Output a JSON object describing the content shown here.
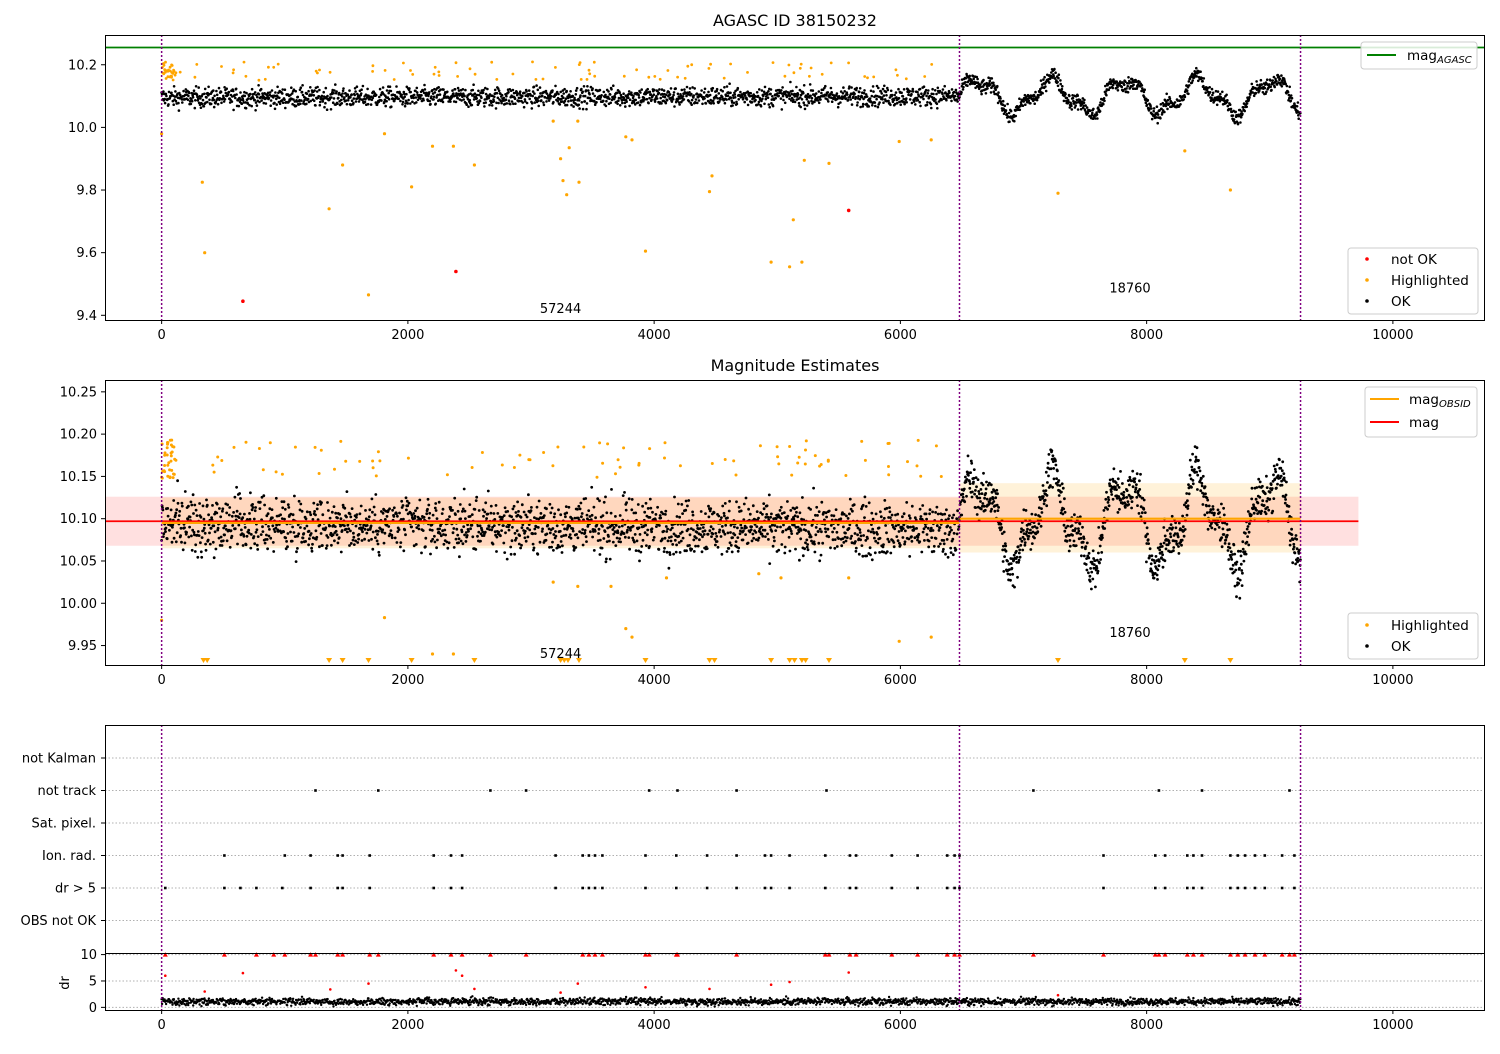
{
  "chart_data": [
    {
      "type": "scatter",
      "title": "AGASC ID 38150232",
      "xlim": [
        -460,
        10740
      ],
      "ylim": [
        9.385,
        10.295
      ],
      "xticks": [
        0,
        2000,
        4000,
        6000,
        8000,
        10000
      ],
      "xtick_labels": [
        "0",
        "2000",
        "4000",
        "6000",
        "8000",
        "10000"
      ],
      "yticks": [
        9.4,
        9.6,
        9.8,
        10.0,
        10.2
      ],
      "ytick_labels": [
        "9.4",
        "9.6",
        "9.8",
        "10.0",
        "10.2"
      ],
      "obsid_boundaries": [
        0,
        6480,
        9250
      ],
      "obsid_labels": [
        {
          "text": "57244",
          "x": 3240,
          "y": 9.42
        },
        {
          "text": "18760",
          "x": 7865,
          "y": 9.485
        }
      ],
      "reference_line": {
        "name": "mag",
        "subscript": "AGASC",
        "y": 10.255,
        "color": "#008000"
      },
      "legends": [
        {
          "position": "top-right",
          "entries": [
            {
              "label": "mag",
              "subscript": "AGASC",
              "kind": "line",
              "color": "#008000"
            }
          ]
        },
        {
          "position": "lower-right",
          "entries": [
            {
              "label": "not OK",
              "kind": "point",
              "color": "#ff0000"
            },
            {
              "label": "Highlighted",
              "kind": "point",
              "color": "#ffa500"
            },
            {
              "label": "OK",
              "kind": "point",
              "color": "#000000"
            }
          ]
        }
      ],
      "series": [
        {
          "name": "OK",
          "color": "#000000",
          "segments": [
            {
              "x_start": 0,
              "x_end": 6480,
              "mean": 10.095,
              "spread": 0.035,
              "trend": -0.005
            },
            {
              "x_start": 6480,
              "x_end": 9250,
              "mean": 10.1,
              "spread": 0.05,
              "oscillation": 0.05
            }
          ]
        },
        {
          "name": "Highlighted",
          "color": "#ffa500",
          "points": [
            [
              0,
              9.98
            ],
            [
              330,
              9.825
            ],
            [
              350,
              9.6
            ],
            [
              1360,
              9.74
            ],
            [
              1470,
              9.88
            ],
            [
              1680,
              9.465
            ],
            [
              1810,
              9.98
            ],
            [
              2030,
              9.81
            ],
            [
              2200,
              9.94
            ],
            [
              2370,
              9.94
            ],
            [
              2540,
              9.88
            ],
            [
              3180,
              10.02
            ],
            [
              3240,
              9.9
            ],
            [
              3260,
              9.83
            ],
            [
              3290,
              9.785
            ],
            [
              3310,
              9.935
            ],
            [
              3390,
              9.825
            ],
            [
              3380,
              10.02
            ],
            [
              3770,
              9.97
            ],
            [
              3820,
              9.96
            ],
            [
              3930,
              9.605
            ],
            [
              4450,
              9.795
            ],
            [
              4470,
              9.845
            ],
            [
              4950,
              9.57
            ],
            [
              5100,
              9.555
            ],
            [
              5130,
              9.705
            ],
            [
              5200,
              9.57
            ],
            [
              5220,
              9.895
            ],
            [
              5420,
              9.885
            ],
            [
              5990,
              9.955
            ],
            [
              6250,
              9.96
            ],
            [
              7280,
              9.79
            ],
            [
              8310,
              9.925
            ],
            [
              8680,
              9.8
            ]
          ]
        },
        {
          "name": "not OK",
          "color": "#ff0000",
          "points": [
            [
              660,
              9.445
            ],
            [
              2390,
              9.54
            ],
            [
              5580,
              9.735
            ]
          ]
        }
      ]
    },
    {
      "type": "scatter",
      "title": "Magnitude Estimates",
      "xlim": [
        -460,
        10740
      ],
      "ylim": [
        9.927,
        10.264
      ],
      "xticks": [
        0,
        2000,
        4000,
        6000,
        8000,
        10000
      ],
      "xtick_labels": [
        "0",
        "2000",
        "4000",
        "6000",
        "8000",
        "10000"
      ],
      "yticks": [
        9.95,
        10.0,
        10.05,
        10.1,
        10.15,
        10.2,
        10.25
      ],
      "ytick_labels": [
        "9.95",
        "10.00",
        "10.05",
        "10.10",
        "10.15",
        "10.20",
        "10.25"
      ],
      "obsid_boundaries": [
        0,
        6480,
        9250
      ],
      "obsid_labels": [
        {
          "text": "57244",
          "x": 3240,
          "y": 9.94
        },
        {
          "text": "18760",
          "x": 7865,
          "y": 9.965
        }
      ],
      "mag_line": {
        "label": "mag",
        "y": 10.097,
        "band": [
          10.068,
          10.126
        ],
        "x_range": [
          -460,
          9720
        ],
        "color": "#ff0000"
      },
      "mag_obsid": [
        {
          "x_range": [
            0,
            6480
          ],
          "y": 10.095,
          "band": [
            10.065,
            10.125
          ]
        },
        {
          "x_range": [
            6480,
            9250
          ],
          "y": 10.1,
          "band": [
            10.06,
            10.142
          ]
        }
      ],
      "legends": [
        {
          "position": "top-right",
          "entries": [
            {
              "label": "mag",
              "subscript": "OBSID",
              "kind": "line",
              "color": "#ffa500"
            },
            {
              "label": "mag",
              "kind": "line",
              "color": "#ff0000"
            }
          ]
        },
        {
          "position": "lower-right",
          "entries": [
            {
              "label": "Highlighted",
              "kind": "point",
              "color": "#ffa500"
            },
            {
              "label": "OK",
              "kind": "point",
              "color": "#000000"
            }
          ]
        }
      ],
      "offscale_markers_x": [
        340,
        370,
        1360,
        1470,
        1680,
        2030,
        2540,
        3240,
        3270,
        3300,
        3390,
        3930,
        4450,
        4490,
        4950,
        5100,
        5140,
        5200,
        5230,
        5420,
        7280,
        8310,
        8680
      ],
      "highlighted_points": [
        [
          0,
          9.98
        ],
        [
          1810,
          9.983
        ],
        [
          2200,
          9.94
        ],
        [
          2370,
          9.94
        ],
        [
          3180,
          10.025
        ],
        [
          3380,
          10.02
        ],
        [
          3650,
          10.02
        ],
        [
          3770,
          9.97
        ],
        [
          3820,
          9.96
        ],
        [
          4100,
          10.03
        ],
        [
          4850,
          10.035
        ],
        [
          5030,
          10.03
        ],
        [
          5580,
          10.03
        ],
        [
          5990,
          9.955
        ],
        [
          6250,
          9.96
        ]
      ]
    },
    {
      "type": "scatter",
      "title": "",
      "xlim": [
        -460,
        10740
      ],
      "xticks": [
        0,
        2000,
        4000,
        6000,
        8000,
        10000
      ],
      "xtick_labels": [
        "0",
        "2000",
        "4000",
        "6000",
        "8000",
        "10000"
      ],
      "flag_rows": [
        "not Kalman",
        "not track",
        "Sat. pixel.",
        "Ion. rad.",
        "dr > 5",
        "OBS not OK"
      ],
      "obsid_boundaries": [
        0,
        6480,
        9250
      ],
      "flags": {
        "not track": [
          1250,
          1760,
          2670,
          2960,
          3960,
          4190,
          4670,
          5400,
          7080,
          8100,
          8450,
          9160
        ],
        "Ion. rad.": [
          510,
          1000,
          1210,
          1430,
          1470,
          1690,
          2210,
          2350,
          2440,
          3200,
          3420,
          3470,
          3520,
          3580,
          3930,
          4180,
          4430,
          4670,
          4900,
          4950,
          5100,
          5390,
          5590,
          5640,
          5930,
          6140,
          6380,
          6440,
          6480,
          7650,
          8070,
          8150,
          8330,
          8380,
          8450,
          8680,
          8740,
          8800,
          8880,
          8960,
          9100,
          9200
        ],
        "dr > 5": [
          30,
          510,
          640,
          770,
          980,
          1210,
          1430,
          1470,
          1690,
          2210,
          2350,
          2440,
          3200,
          3420,
          3470,
          3520,
          3580,
          3930,
          4180,
          4430,
          4670,
          4900,
          4950,
          5100,
          5390,
          5590,
          5640,
          5930,
          6140,
          6380,
          6440,
          6480,
          7650,
          8070,
          8150,
          8330,
          8380,
          8450,
          8680,
          8740,
          8800,
          8880,
          8960,
          9100,
          9200
        ]
      }
    },
    {
      "type": "scatter",
      "title": "",
      "ylabel": "dr",
      "xlim": [
        -460,
        10740
      ],
      "ylim": [
        -0.5,
        10.3
      ],
      "xticks": [
        0,
        2000,
        4000,
        6000,
        8000,
        10000
      ],
      "xtick_labels": [
        "0",
        "2000",
        "4000",
        "6000",
        "8000",
        "10000"
      ],
      "yticks": [
        0,
        5,
        10
      ],
      "ytick_labels": [
        "0",
        "5",
        "10"
      ],
      "obsid_boundaries": [
        0,
        6480,
        9250
      ],
      "capped_markers_x": [
        30,
        510,
        770,
        910,
        1000,
        1210,
        1250,
        1430,
        1470,
        1690,
        1760,
        2210,
        2350,
        2440,
        2670,
        2960,
        3420,
        3470,
        3520,
        3580,
        3930,
        3960,
        4180,
        4190,
        4670,
        5390,
        5420,
        5590,
        5640,
        5930,
        6140,
        6380,
        6440,
        6480,
        7080,
        7650,
        8070,
        8100,
        8150,
        8330,
        8380,
        8450,
        8680,
        8740,
        8800,
        8880,
        8960,
        9100,
        9160,
        9200
      ],
      "outlier_points": [
        [
          30,
          6.0
        ],
        [
          350,
          3.0
        ],
        [
          660,
          6.5
        ],
        [
          1370,
          3.4
        ],
        [
          1680,
          4.5
        ],
        [
          2390,
          7.0
        ],
        [
          2440,
          6.0
        ],
        [
          2540,
          3.5
        ],
        [
          3240,
          2.8
        ],
        [
          3380,
          4.5
        ],
        [
          3930,
          3.8
        ],
        [
          4450,
          3.5
        ],
        [
          4950,
          4.3
        ],
        [
          5100,
          4.8
        ],
        [
          5580,
          6.6
        ],
        [
          7280,
          2.3
        ]
      ],
      "baseline": {
        "mean": 1.1,
        "spread": 0.6
      }
    }
  ]
}
